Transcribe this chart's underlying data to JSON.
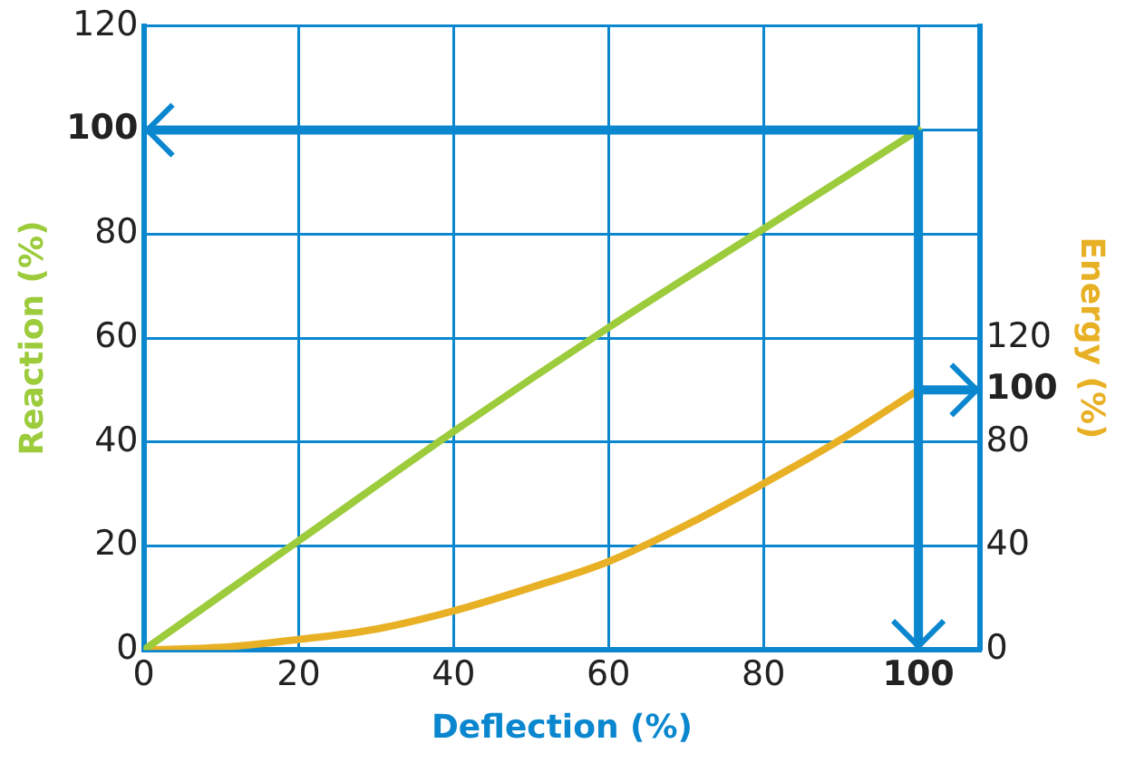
{
  "chart_data": {
    "type": "line",
    "xlabel": "Deflection (%)",
    "ylabel": "Reaction (%)",
    "y2label": "Energy (%)",
    "xlim": [
      0,
      108
    ],
    "xticks": [
      0,
      20,
      40,
      60,
      80,
      100
    ],
    "ylim": [
      0,
      120
    ],
    "yticks": [
      0,
      20,
      40,
      60,
      80,
      100,
      120
    ],
    "y2lim": [
      0,
      240
    ],
    "y2ticks": [
      0,
      40,
      80,
      100,
      120
    ],
    "grid": true,
    "legend": false,
    "marker": "none",
    "line_style": "solid",
    "series": [
      {
        "color": "#9ccb3b",
        "x": [
          0,
          20,
          40,
          60,
          80,
          100
        ],
        "values": [
          0,
          21,
          42,
          62,
          81,
          100
        ]
      },
      {
        "color": "#e8b024",
        "axis": "y2",
        "x": [
          0,
          10,
          20,
          30,
          40,
          50,
          60,
          70,
          80,
          90,
          100
        ],
        "values": [
          0,
          1,
          4,
          8,
          15,
          24,
          34,
          48,
          64,
          81,
          100
        ]
      }
    ]
  }
}
